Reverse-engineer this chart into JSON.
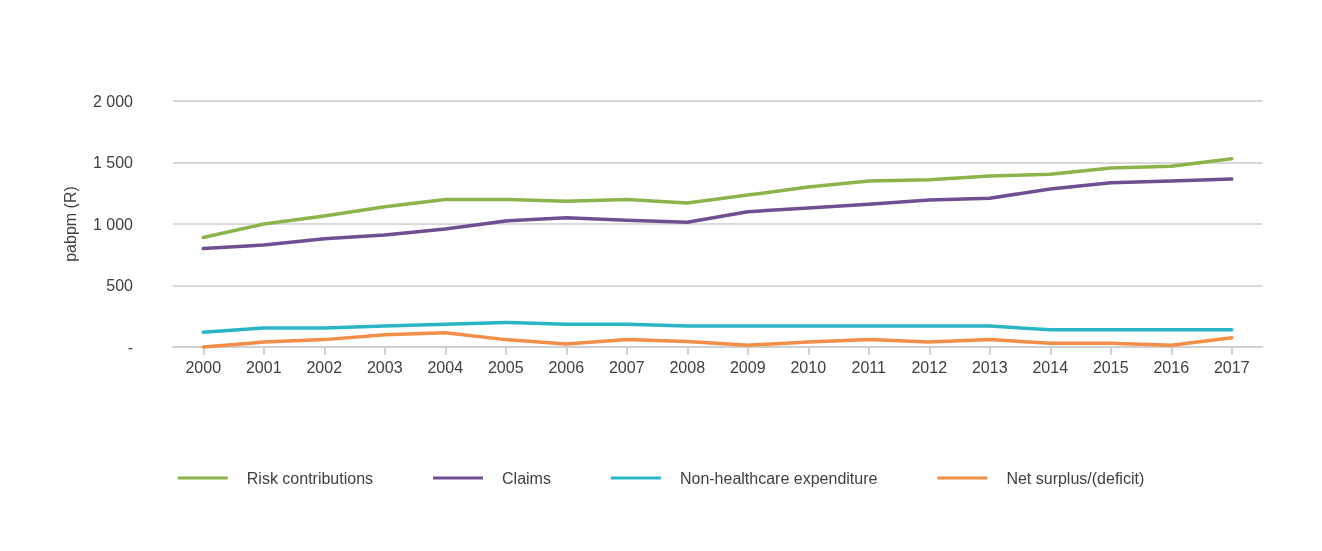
{
  "chart_data": {
    "type": "line",
    "ylabel": "pabpm (R)",
    "categories": [
      "2000",
      "2001",
      "2002",
      "2003",
      "2004",
      "2005",
      "2006",
      "2007",
      "2008",
      "2009",
      "2010",
      "2011",
      "2012",
      "2013",
      "2014",
      "2015",
      "2016",
      "2017"
    ],
    "series": [
      {
        "name": "Risk contributions",
        "color": "#8db44a",
        "values": [
          890,
          1000,
          1065,
          1140,
          1200,
          1200,
          1185,
          1200,
          1170,
          1235,
          1300,
          1350,
          1360,
          1390,
          1405,
          1455,
          1470,
          1530
        ]
      },
      {
        "name": "Claims",
        "color": "#6f4f92",
        "values": [
          800,
          830,
          880,
          910,
          960,
          1025,
          1050,
          1030,
          1015,
          1100,
          1130,
          1160,
          1195,
          1210,
          1285,
          1335,
          1350,
          1365
        ]
      },
      {
        "name": "Non-healthcare expenditure",
        "color": "#2bb5c5",
        "values": [
          120,
          155,
          155,
          170,
          185,
          200,
          185,
          185,
          170,
          170,
          170,
          170,
          170,
          170,
          140,
          140,
          140,
          140
        ]
      },
      {
        "name": "Net surplus/(deficit)",
        "color": "#f28e45",
        "values": [
          0,
          40,
          60,
          100,
          115,
          60,
          25,
          60,
          45,
          15,
          40,
          60,
          40,
          60,
          30,
          30,
          15,
          75
        ]
      }
    ],
    "ylim": [
      0,
      2000
    ],
    "yticks": [
      {
        "value": 0,
        "label": "-"
      },
      500,
      {
        "value": 1000,
        "label": "1 000"
      },
      {
        "value": 1500,
        "label": "1 500"
      },
      {
        "value": 2000,
        "label": "2 000"
      }
    ],
    "grid": "y",
    "legend": "bottom",
    "marker": "none",
    "line_style": "solid"
  }
}
